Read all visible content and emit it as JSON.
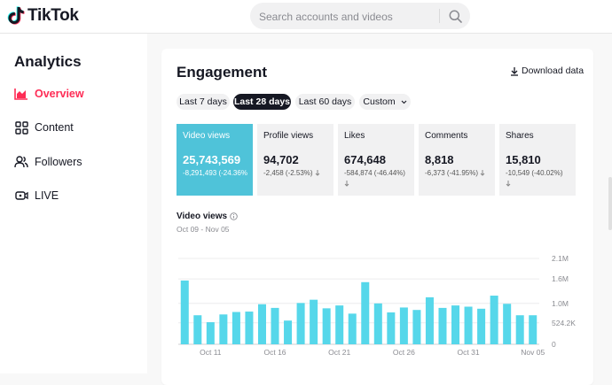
{
  "header": {
    "logo_text": "TikTok",
    "search_placeholder": "Search accounts and videos"
  },
  "sidebar": {
    "title": "Analytics",
    "items": [
      {
        "label": "Overview",
        "icon": "bar-chart-icon",
        "active": true
      },
      {
        "label": "Content",
        "icon": "grid-icon",
        "active": false
      },
      {
        "label": "Followers",
        "icon": "users-icon",
        "active": false
      },
      {
        "label": "LIVE",
        "icon": "live-icon",
        "active": false
      }
    ]
  },
  "engagement": {
    "title": "Engagement",
    "download_label": "Download data",
    "ranges": [
      {
        "label": "Last 7 days",
        "active": false
      },
      {
        "label": "Last 28 days",
        "active": true
      },
      {
        "label": "Last 60 days",
        "active": false
      },
      {
        "label": "Custom",
        "active": false
      }
    ],
    "metrics": [
      {
        "label": "Video views",
        "value": "25,743,569",
        "delta": "-8,291,493 (-24.36%",
        "active": true
      },
      {
        "label": "Profile views",
        "value": "94,702",
        "delta": "-2,458 (-2.53%)",
        "active": false
      },
      {
        "label": "Likes",
        "value": "674,648",
        "delta": "-584,874 (-46.44%)",
        "active": false
      },
      {
        "label": "Comments",
        "value": "8,818",
        "delta": "-6,373 (-41.95%)",
        "active": false
      },
      {
        "label": "Shares",
        "value": "15,810",
        "delta": "-10,549 (-40.02%)",
        "active": false
      }
    ],
    "chart_title": "Video views",
    "date_range": "Oct 09 - Nov 05"
  },
  "colors": {
    "accent": "#fe2c55",
    "bar": "#56d7ea",
    "active_card": "#4fc3d9",
    "dark": "#161823"
  },
  "chart_data": {
    "type": "bar",
    "title": "Video views",
    "x_tick_labels": [
      "Oct 11",
      "Oct 16",
      "Oct 21",
      "Oct 26",
      "Oct 31",
      "Nov 05"
    ],
    "x_tick_indices": [
      2,
      7,
      12,
      17,
      22,
      27
    ],
    "y_tick_values": [
      0,
      524200,
      1000000,
      1600000,
      2100000
    ],
    "y_tick_labels": [
      "0",
      "524.2K",
      "1.0M",
      "1.6M",
      "2.1M"
    ],
    "ylim": [
      0,
      2100000
    ],
    "grid": true,
    "values": [
      1560000,
      710000,
      540000,
      730000,
      790000,
      800000,
      980000,
      890000,
      580000,
      1010000,
      1090000,
      880000,
      950000,
      750000,
      1520000,
      1000000,
      780000,
      900000,
      840000,
      1150000,
      890000,
      950000,
      920000,
      870000,
      1190000,
      990000,
      710000,
      710000
    ]
  }
}
